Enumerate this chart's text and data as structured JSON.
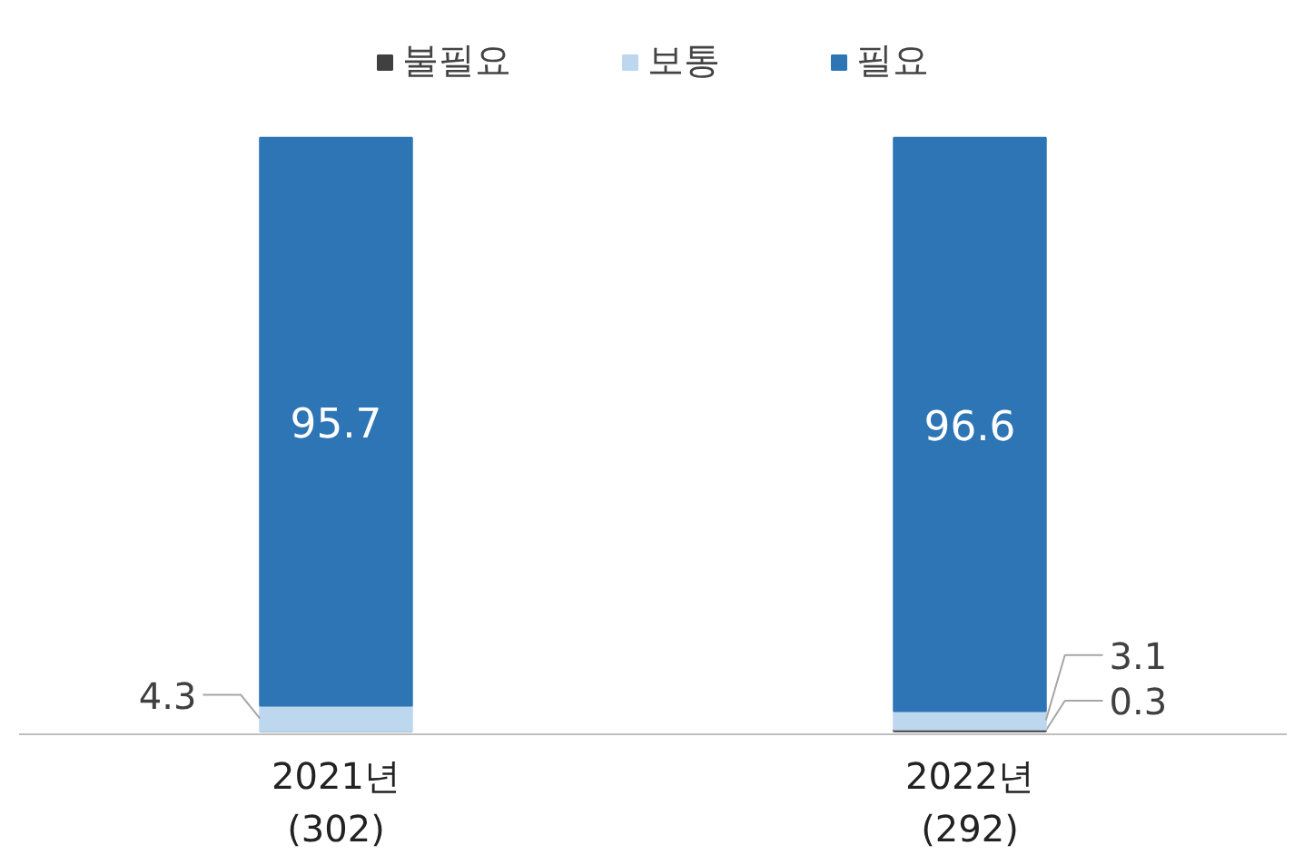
{
  "chart_data": {
    "type": "bar",
    "stacked": true,
    "categories": [
      "2021년\n(302)",
      "2022년\n(292)"
    ],
    "series": [
      {
        "name": "불필요",
        "color": "#404040",
        "values": [
          0,
          0.3
        ],
        "value_labels": [
          null,
          "0.3"
        ]
      },
      {
        "name": "보통",
        "color": "#bdd7ee",
        "values": [
          4.3,
          3.1
        ],
        "value_labels": [
          "4.3",
          "3.1"
        ]
      },
      {
        "name": "필요",
        "color": "#2e75b6",
        "values": [
          95.7,
          96.6
        ],
        "value_labels": [
          "95.7",
          "96.6"
        ]
      }
    ],
    "legend": "top",
    "grid": false
  }
}
